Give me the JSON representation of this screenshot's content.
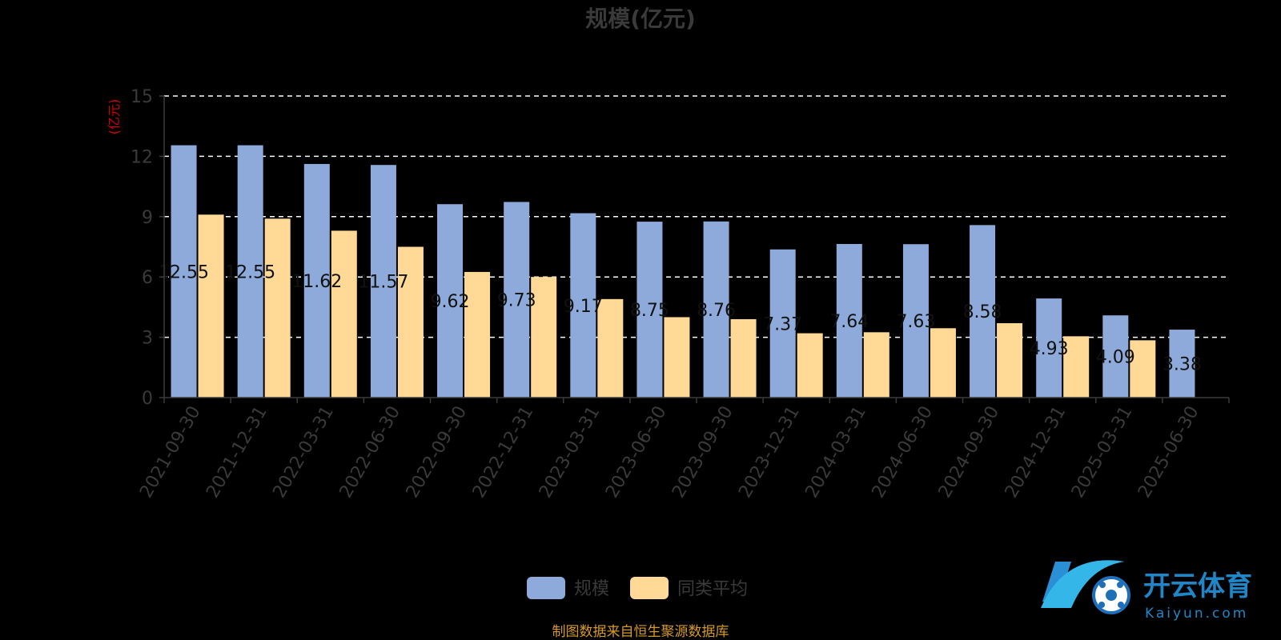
{
  "chart_data": {
    "type": "bar",
    "title": "规模(亿元)",
    "ylabel": "(亿元)",
    "xlabel": "",
    "ylim": [
      0,
      15
    ],
    "yticks": [
      0,
      3,
      6,
      9,
      12,
      15
    ],
    "grid": true,
    "legend_position": "bottom-center",
    "categories": [
      "2021-09-30",
      "2021-12-31",
      "2022-03-31",
      "2022-06-30",
      "2022-09-30",
      "2022-12-31",
      "2023-03-31",
      "2023-06-30",
      "2023-09-30",
      "2023-12-31",
      "2024-03-31",
      "2024-06-30",
      "2024-09-30",
      "2024-12-31",
      "2025-03-31",
      "2025-06-30"
    ],
    "series": [
      {
        "name": "规模",
        "color": "#8eaadb",
        "values": [
          12.55,
          12.55,
          11.62,
          11.57,
          9.62,
          9.73,
          9.17,
          8.75,
          8.76,
          7.37,
          7.64,
          7.63,
          8.58,
          4.93,
          4.09,
          3.38
        ],
        "data_labels": [
          "12.55",
          "12.55",
          "11.62",
          "11.57",
          "9.62",
          "9.73",
          "9.17",
          "8.75",
          "8.76",
          "7.37",
          "7.64",
          "7.63",
          "8.58",
          "4.93",
          "4.09",
          "3.38"
        ]
      },
      {
        "name": "同类平均",
        "color": "#ffd995",
        "values": [
          9.1,
          8.9,
          8.3,
          7.5,
          6.25,
          6.0,
          4.9,
          4.0,
          3.9,
          3.2,
          3.25,
          3.45,
          3.7,
          3.05,
          2.85,
          null
        ]
      }
    ]
  },
  "source": "制图数据来自恒生聚源数据库",
  "watermark": {
    "brand": "开云体育",
    "domain": "Kaiyun.com"
  }
}
